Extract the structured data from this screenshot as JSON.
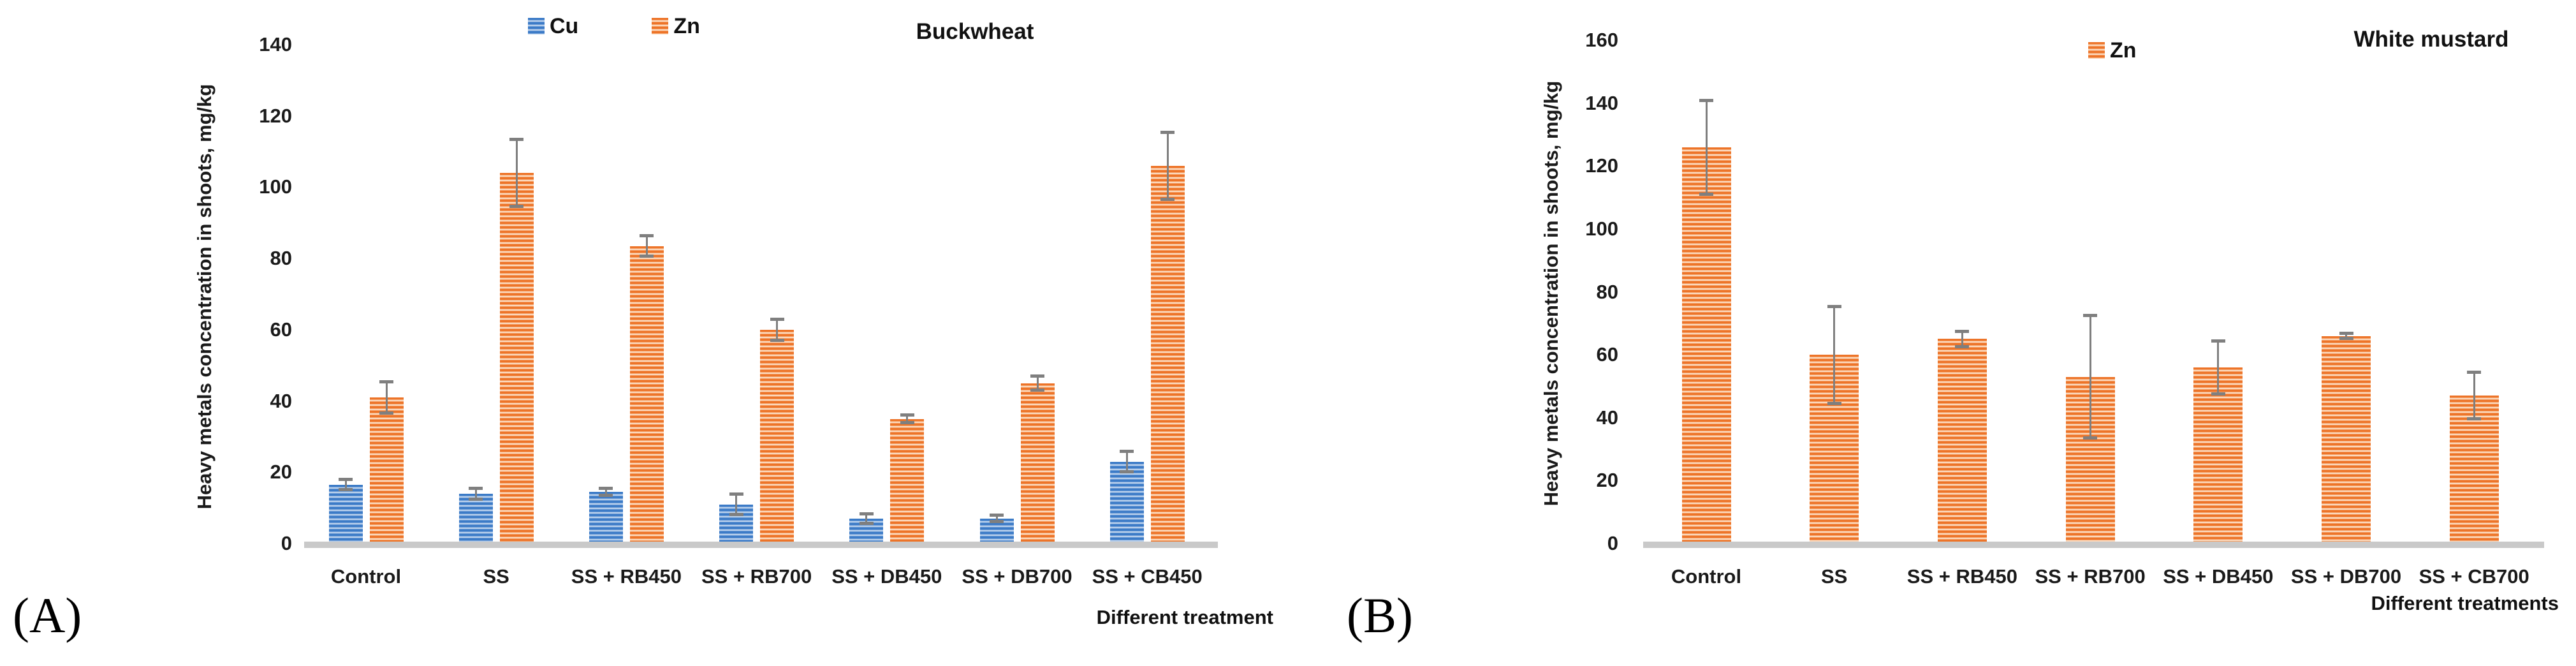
{
  "chart_data": [
    {
      "type": "bar",
      "panel": "A",
      "corner_label": "(A)",
      "title": "Buckwheat",
      "ylabel": "Heavy metals concentration in shoots, mg/kg",
      "xlabel": "Different treatment",
      "ylim": [
        0,
        140
      ],
      "ytick_step": 20,
      "grid": false,
      "legend_position": "top-center",
      "error_bar_color": "#7F7F7F",
      "categories": [
        "Control",
        "SS",
        "SS + RB450",
        "SS + RB700",
        "SS + DB450",
        "SS + DB700",
        "SS + CB450"
      ],
      "series": [
        {
          "name": "Cu",
          "color": "#3C7BC7",
          "pattern": "blue",
          "values": [
            16.5,
            14,
            14.5,
            11,
            7,
            7,
            23
          ],
          "errors": [
            1.5,
            1.6,
            1,
            3,
            1.5,
            1,
            3
          ]
        },
        {
          "name": "Zn",
          "color": "#ED7429",
          "pattern": "orange",
          "values": [
            41,
            104,
            83.5,
            60,
            35,
            45,
            106
          ],
          "errors": [
            4.5,
            9.5,
            3,
            3,
            1.2,
            2,
            9.5
          ]
        }
      ]
    },
    {
      "type": "bar",
      "panel": "B",
      "corner_label": "(B)",
      "title": "White mustard",
      "ylabel": "Heavy metals concentration in shoots, mg/kg",
      "xlabel": "Different treatments",
      "ylim": [
        0,
        160
      ],
      "ytick_step": 20,
      "grid": false,
      "legend_position": "top-center",
      "error_bar_color": "#7F7F7F",
      "categories": [
        "Control",
        "SS",
        "SS + RB450",
        "SS + RB700",
        "SS + DB450",
        "SS + DB700",
        "SS + CB700"
      ],
      "series": [
        {
          "name": "Zn",
          "color": "#ED7429",
          "pattern": "orange",
          "values": [
            126,
            60,
            65,
            53,
            56,
            66,
            47
          ],
          "errors": [
            15,
            15.5,
            2.5,
            19.5,
            8.5,
            1,
            7.5
          ]
        }
      ]
    }
  ]
}
